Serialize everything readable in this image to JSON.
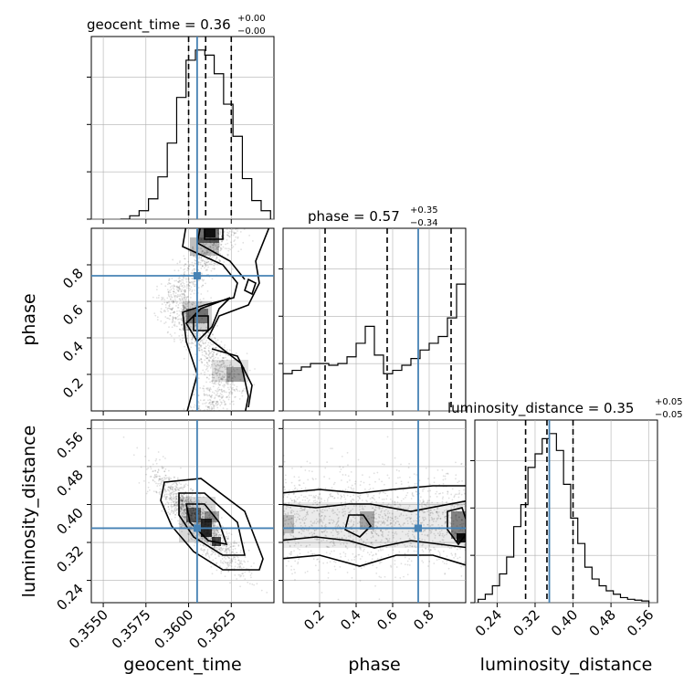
{
  "truth_color": "#4682b4",
  "chart_data": [
    {
      "type": "histogram",
      "panel": "geocent_time",
      "title": "geocent_time = 0.36",
      "title_sup": "+0.00",
      "title_sub": "−0.00",
      "xlim": [
        0.3543,
        0.365
      ],
      "bin_edges": [
        0.356,
        0.35655,
        0.3571,
        0.35765,
        0.3582,
        0.35875,
        0.3593,
        0.35985,
        0.3604,
        0.36095,
        0.3615,
        0.36205,
        0.3626,
        0.36315,
        0.3637,
        0.36425,
        0.3648
      ],
      "counts": [
        0.0,
        0.02,
        0.05,
        0.12,
        0.25,
        0.45,
        0.72,
        0.94,
        1.0,
        0.97,
        0.86,
        0.68,
        0.49,
        0.24,
        0.11,
        0.05
      ],
      "quantiles": [
        0.36,
        0.361,
        0.3625
      ],
      "truth": 0.3605
    },
    {
      "type": "histogram",
      "panel": "phase",
      "title": "phase = 0.57",
      "title_sup": "+0.35",
      "title_sub": "−0.34",
      "xlim": [
        0.0,
        1.0
      ],
      "bin_edges": [
        0.0,
        0.05,
        0.1,
        0.15,
        0.2,
        0.25,
        0.3,
        0.35,
        0.4,
        0.45,
        0.5,
        0.55,
        0.6,
        0.65,
        0.7,
        0.75,
        0.8,
        0.85,
        0.9,
        0.95,
        1.0
      ],
      "counts": [
        0.22,
        0.24,
        0.26,
        0.28,
        0.28,
        0.27,
        0.28,
        0.32,
        0.4,
        0.5,
        0.33,
        0.22,
        0.24,
        0.27,
        0.31,
        0.36,
        0.4,
        0.44,
        0.55,
        0.75
      ],
      "quantiles": [
        0.23,
        0.57,
        0.92
      ],
      "truth": 0.74
    },
    {
      "type": "histogram",
      "panel": "luminosity_distance",
      "title": "luminosity_distance = 0.35",
      "title_sup": "+0.05",
      "title_sub": "−0.05",
      "xlim": [
        0.193,
        0.578
      ],
      "xticks": [
        0.24,
        0.32,
        0.4,
        0.48,
        0.56
      ],
      "bin_edges": [
        0.2,
        0.215,
        0.23,
        0.245,
        0.26,
        0.275,
        0.29,
        0.305,
        0.32,
        0.335,
        0.35,
        0.365,
        0.38,
        0.395,
        0.41,
        0.425,
        0.44,
        0.455,
        0.47,
        0.485,
        0.5,
        0.515,
        0.53,
        0.545,
        0.56
      ],
      "counts": [
        0.02,
        0.05,
        0.1,
        0.17,
        0.27,
        0.45,
        0.58,
        0.8,
        0.88,
        0.97,
        1.0,
        0.9,
        0.7,
        0.5,
        0.35,
        0.21,
        0.14,
        0.1,
        0.07,
        0.05,
        0.03,
        0.02,
        0.015,
        0.01
      ],
      "quantiles": [
        0.3,
        0.345,
        0.4
      ],
      "truth": 0.35
    },
    {
      "type": "contour",
      "panel": "phase vs geocent_time",
      "xlabel": "",
      "ylabel": "phase",
      "xlim": [
        0.3543,
        0.365
      ],
      "ylim": [
        0.0,
        1.0
      ],
      "yticks": [
        0.2,
        0.4,
        0.6,
        0.8
      ],
      "truth": [
        0.3605,
        0.74
      ]
    },
    {
      "type": "contour",
      "panel": "luminosity_distance vs geocent_time",
      "xlabel": "geocent_time",
      "ylabel": "luminosity_distance",
      "xlim": [
        0.3543,
        0.365
      ],
      "ylim": [
        0.193,
        0.578
      ],
      "xticks": [
        0.355,
        0.3575,
        0.36,
        0.3625
      ],
      "yticks": [
        0.24,
        0.32,
        0.4,
        0.48,
        0.56
      ],
      "truth": [
        0.3605,
        0.35
      ]
    },
    {
      "type": "contour",
      "panel": "luminosity_distance vs phase",
      "xlabel": "phase",
      "ylabel": "",
      "xlim": [
        0.0,
        1.0
      ],
      "ylim": [
        0.193,
        0.578
      ],
      "xticks": [
        0.2,
        0.4,
        0.6,
        0.8
      ],
      "truth": [
        0.74,
        0.35
      ]
    }
  ],
  "labels": {
    "axis_geocent_time": "geocent_time",
    "axis_phase_x": "phase",
    "axis_phase_y": "phase",
    "axis_lumdist_x": "luminosity_distance",
    "axis_lumdist_y": "luminosity_distance",
    "title_geocent": "geocent_time = 0.36",
    "title_phase": "phase = 0.57",
    "title_lumdist": "luminosity_distance = 0.35",
    "sup_geocent": "+0.00",
    "sub_geocent": "−0.00",
    "sup_phase": "+0.35",
    "sub_phase": "−0.34",
    "sup_lumdist": "+0.05",
    "sub_lumdist": "−0.05",
    "xt_time": [
      "0.3550",
      "0.3575",
      "0.3600",
      "0.3625"
    ],
    "xt_phase": [
      "0.2",
      "0.4",
      "0.6",
      "0.8"
    ],
    "xt_ld": [
      "0.24",
      "0.32",
      "0.40",
      "0.48",
      "0.56"
    ],
    "yt_phase": [
      "0.2",
      "0.4",
      "0.6",
      "0.8"
    ],
    "yt_ld": [
      "0.24",
      "0.32",
      "0.40",
      "0.48",
      "0.56"
    ]
  }
}
